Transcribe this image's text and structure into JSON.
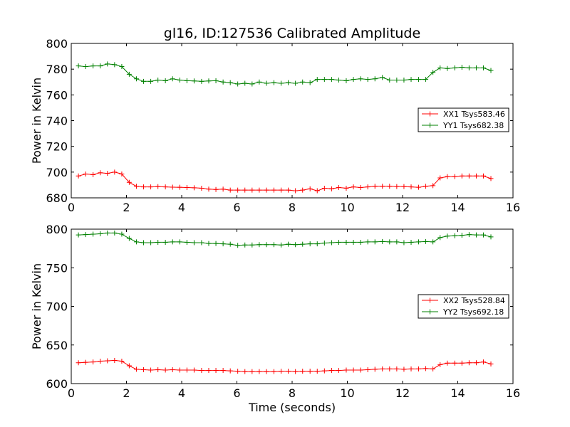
{
  "title": "gl16, ID:127536 Calibrated Amplitude",
  "chart_data": [
    {
      "type": "line",
      "ylabel": "Power in Kelvin",
      "xlabel": "",
      "xlim": [
        0,
        16
      ],
      "ylim": [
        680,
        800
      ],
      "xticks": [
        0,
        2,
        4,
        6,
        8,
        10,
        12,
        14,
        16
      ],
      "yticks": [
        680,
        700,
        720,
        740,
        760,
        780,
        800
      ],
      "legend_position": "right",
      "grid": false,
      "x": [
        0.26,
        0.52,
        0.79,
        1.05,
        1.31,
        1.57,
        1.83,
        2.1,
        2.36,
        2.62,
        2.88,
        3.14,
        3.41,
        3.67,
        3.93,
        4.19,
        4.45,
        4.72,
        4.98,
        5.24,
        5.5,
        5.76,
        6.03,
        6.29,
        6.55,
        6.81,
        7.07,
        7.34,
        7.6,
        7.86,
        8.12,
        8.38,
        8.65,
        8.91,
        9.17,
        9.43,
        9.69,
        9.96,
        10.22,
        10.48,
        10.74,
        11.0,
        11.27,
        11.53,
        11.79,
        12.05,
        12.31,
        12.58,
        12.84,
        13.1,
        13.36,
        13.62,
        13.89,
        14.15,
        14.41,
        14.67,
        14.93,
        15.2
      ],
      "series": [
        {
          "name": "XX1 Tsys583.46",
          "color": "#ff0000",
          "values": [
            697,
            698.5,
            698,
            699.5,
            699,
            700,
            698.5,
            692,
            689,
            688.5,
            688.5,
            688.8,
            688.5,
            688.3,
            688.2,
            688,
            687.8,
            687.5,
            686.8,
            686.5,
            686.8,
            686,
            686,
            686,
            686,
            686,
            686,
            686,
            686,
            686,
            685.5,
            686,
            687,
            685.5,
            687.5,
            687,
            688,
            687.5,
            688.5,
            688,
            688.5,
            689,
            689,
            689,
            688.8,
            688.8,
            688.5,
            688.2,
            689,
            689.5,
            695.5,
            696.5,
            696.5,
            697,
            697,
            697,
            697,
            695
          ]
        },
        {
          "name": "YY1 Tsys682.38",
          "color": "#008000",
          "values": [
            782.5,
            782,
            782.5,
            782.5,
            784,
            783.5,
            782,
            776,
            772.5,
            770.5,
            770.5,
            771.5,
            771,
            772.5,
            771.5,
            771,
            770.8,
            770.5,
            770.8,
            771,
            770,
            769.5,
            768.5,
            769,
            768.5,
            770,
            769,
            769.5,
            769,
            769.5,
            769,
            770,
            769.5,
            772,
            772,
            772,
            771.5,
            771,
            772,
            772.5,
            772,
            772.5,
            773.5,
            771.5,
            771.5,
            771.5,
            772,
            772,
            772,
            777.5,
            781,
            780.5,
            781,
            781.5,
            781,
            781,
            781,
            779
          ]
        }
      ]
    },
    {
      "type": "line",
      "ylabel": "Power in Kelvin",
      "xlabel": "Time (seconds)",
      "xlim": [
        0,
        16
      ],
      "ylim": [
        600,
        800
      ],
      "xticks": [
        0,
        2,
        4,
        6,
        8,
        10,
        12,
        14,
        16
      ],
      "yticks": [
        600,
        650,
        700,
        750,
        800
      ],
      "legend_position": "right",
      "grid": false,
      "x": [
        0.26,
        0.52,
        0.79,
        1.05,
        1.31,
        1.57,
        1.83,
        2.1,
        2.36,
        2.62,
        2.88,
        3.14,
        3.41,
        3.67,
        3.93,
        4.19,
        4.45,
        4.72,
        4.98,
        5.24,
        5.5,
        5.76,
        6.03,
        6.29,
        6.55,
        6.81,
        7.07,
        7.34,
        7.6,
        7.86,
        8.12,
        8.38,
        8.65,
        8.91,
        9.17,
        9.43,
        9.69,
        9.96,
        10.22,
        10.48,
        10.74,
        11.0,
        11.27,
        11.53,
        11.79,
        12.05,
        12.31,
        12.58,
        12.84,
        13.1,
        13.36,
        13.62,
        13.89,
        14.15,
        14.41,
        14.67,
        14.93,
        15.2
      ],
      "series": [
        {
          "name": "XX2 Tsys528.84",
          "color": "#ff0000",
          "values": [
            627,
            627.5,
            628,
            629,
            629.5,
            630,
            629,
            623,
            618.5,
            618,
            617.5,
            618,
            617.5,
            618,
            617.5,
            617.5,
            617.5,
            617,
            617,
            617,
            617,
            616.5,
            616,
            615.5,
            615.5,
            615.5,
            615.5,
            615.5,
            616,
            616,
            615.5,
            616,
            616,
            616,
            616.5,
            617,
            617,
            617.5,
            617.5,
            617.5,
            618,
            618.5,
            619,
            619,
            619,
            618.5,
            619,
            619,
            619.5,
            619,
            624.5,
            626.5,
            626.5,
            626.5,
            627,
            627,
            628,
            625.5
          ]
        },
        {
          "name": "YY2 Tsys692.18",
          "color": "#008000",
          "values": [
            792.5,
            793,
            793.5,
            794,
            795,
            795,
            793.5,
            788,
            783.5,
            782.5,
            782.5,
            783,
            783,
            783.5,
            783.5,
            783,
            782.5,
            782.5,
            781.5,
            781.5,
            781,
            780.5,
            779,
            779.5,
            779.5,
            780,
            780,
            780,
            779.5,
            780.5,
            780,
            780.5,
            781,
            781,
            782,
            782.5,
            783,
            783,
            783,
            783,
            783.5,
            783.5,
            784,
            783.5,
            783.5,
            782.5,
            783,
            783.5,
            784,
            783.5,
            789,
            791,
            791.5,
            792,
            793,
            792.5,
            792.5,
            790
          ]
        }
      ]
    }
  ]
}
